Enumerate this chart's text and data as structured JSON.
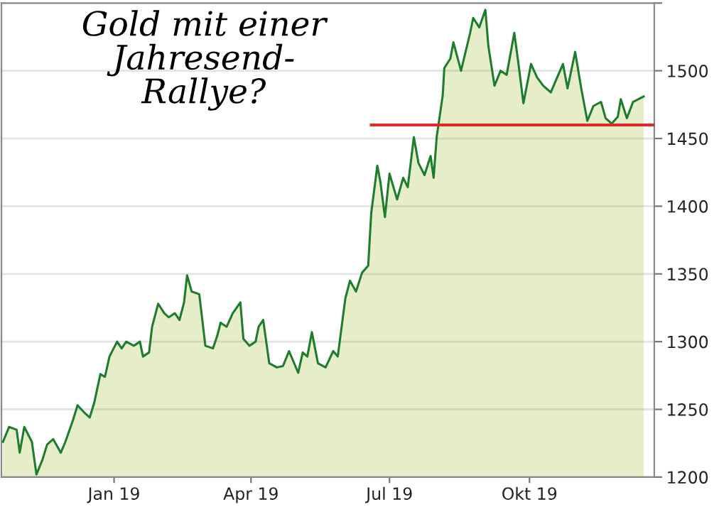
{
  "chart_data": {
    "type": "area",
    "title": "Gold mit einer\nJahresend-\nRallye?",
    "xlim": [
      "2018-10-19",
      "2019-12-22"
    ],
    "xticks": [
      {
        "value": "2019-01-01",
        "label": "Jan 19"
      },
      {
        "value": "2019-04-01",
        "label": "Apr 19"
      },
      {
        "value": "2019-07-01",
        "label": "Jul 19"
      },
      {
        "value": "2019-10-01",
        "label": "Okt 19"
      }
    ],
    "ylim": [
      1200,
      1550
    ],
    "yticks": [
      1200,
      1250,
      1300,
      1350,
      1400,
      1450,
      1500,
      {
        "value": 1550,
        "label": null
      }
    ],
    "grid": "y",
    "legend": false,
    "series": [
      {
        "type": "area",
        "color": "#1e7d2c",
        "x": [
          "2018-10-20",
          "2018-10-24",
          "2018-10-29",
          "2018-10-31",
          "2018-11-03",
          "2018-11-08",
          "2018-11-11",
          "2018-11-15",
          "2018-11-18",
          "2018-11-22",
          "2018-11-27",
          "2018-11-30",
          "2018-12-05",
          "2018-12-08",
          "2018-12-13",
          "2018-12-16",
          "2018-12-19",
          "2018-12-23",
          "2018-12-26",
          "2018-12-29",
          "2019-01-03",
          "2019-01-06",
          "2019-01-09",
          "2019-01-14",
          "2019-01-18",
          "2019-01-20",
          "2019-01-24",
          "2019-01-26",
          "2019-01-30",
          "2019-02-03",
          "2019-02-06",
          "2019-02-10",
          "2019-02-13",
          "2019-02-16",
          "2019-02-18",
          "2019-02-21",
          "2019-02-26",
          "2019-03-02",
          "2019-03-07",
          "2019-03-10",
          "2019-03-12",
          "2019-03-16",
          "2019-03-20",
          "2019-03-25",
          "2019-03-27",
          "2019-03-31",
          "2019-04-04",
          "2019-04-06",
          "2019-04-09",
          "2019-04-13",
          "2019-04-18",
          "2019-04-22",
          "2019-04-26",
          "2019-05-02",
          "2019-05-05",
          "2019-05-08",
          "2019-05-11",
          "2019-05-15",
          "2019-05-20",
          "2019-05-25",
          "2019-05-28",
          "2019-06-02",
          "2019-06-05",
          "2019-06-09",
          "2019-06-13",
          "2019-06-17",
          "2019-06-19",
          "2019-06-23",
          "2019-06-25",
          "2019-06-28",
          "2019-07-01",
          "2019-07-06",
          "2019-07-10",
          "2019-07-13",
          "2019-07-17",
          "2019-07-20",
          "2019-07-24",
          "2019-07-28",
          "2019-07-30",
          "2019-08-01",
          "2019-08-05",
          "2019-08-06",
          "2019-08-10",
          "2019-08-12",
          "2019-08-17",
          "2019-08-23",
          "2019-08-25",
          "2019-08-29",
          "2019-09-02",
          "2019-09-04",
          "2019-09-08",
          "2019-09-12",
          "2019-09-16",
          "2019-09-21",
          "2019-09-24",
          "2019-09-27",
          "2019-10-02",
          "2019-10-06",
          "2019-10-10",
          "2019-10-15",
          "2019-10-18",
          "2019-10-23",
          "2019-10-26",
          "2019-10-31",
          "2019-11-04",
          "2019-11-08",
          "2019-11-12",
          "2019-11-17",
          "2019-11-20",
          "2019-11-24",
          "2019-11-28",
          "2019-11-30",
          "2019-12-04",
          "2019-12-08",
          "2019-12-15"
        ],
        "values": [
          1226,
          1237,
          1235,
          1218,
          1237,
          1226,
          1202,
          1213,
          1224,
          1228,
          1218,
          1226,
          1242,
          1253,
          1247,
          1244,
          1255,
          1276,
          1274,
          1289,
          1300,
          1295,
          1300,
          1297,
          1300,
          1289,
          1292,
          1311,
          1328,
          1321,
          1318,
          1321,
          1316,
          1329,
          1349,
          1337,
          1335,
          1297,
          1295,
          1305,
          1314,
          1311,
          1321,
          1329,
          1302,
          1297,
          1300,
          1311,
          1316,
          1284,
          1281,
          1282,
          1293,
          1277,
          1292,
          1289,
          1307,
          1284,
          1281,
          1293,
          1289,
          1332,
          1345,
          1337,
          1351,
          1356,
          1395,
          1430,
          1418,
          1392,
          1424,
          1405,
          1421,
          1414,
          1451,
          1432,
          1423,
          1437,
          1421,
          1451,
          1482,
          1502,
          1509,
          1521,
          1500,
          1528,
          1539,
          1532,
          1545,
          1518,
          1489,
          1500,
          1497,
          1528,
          1503,
          1476,
          1505,
          1495,
          1489,
          1484,
          1492,
          1505,
          1487,
          1514,
          1487,
          1463,
          1474,
          1477,
          1465,
          1461,
          1466,
          1479,
          1465,
          1477,
          1481
        ]
      },
      {
        "type": "line",
        "color": "#e8262a",
        "x": [
          "2019-06-19",
          "2019-12-22"
        ],
        "values": [
          1460,
          1460
        ]
      }
    ]
  }
}
